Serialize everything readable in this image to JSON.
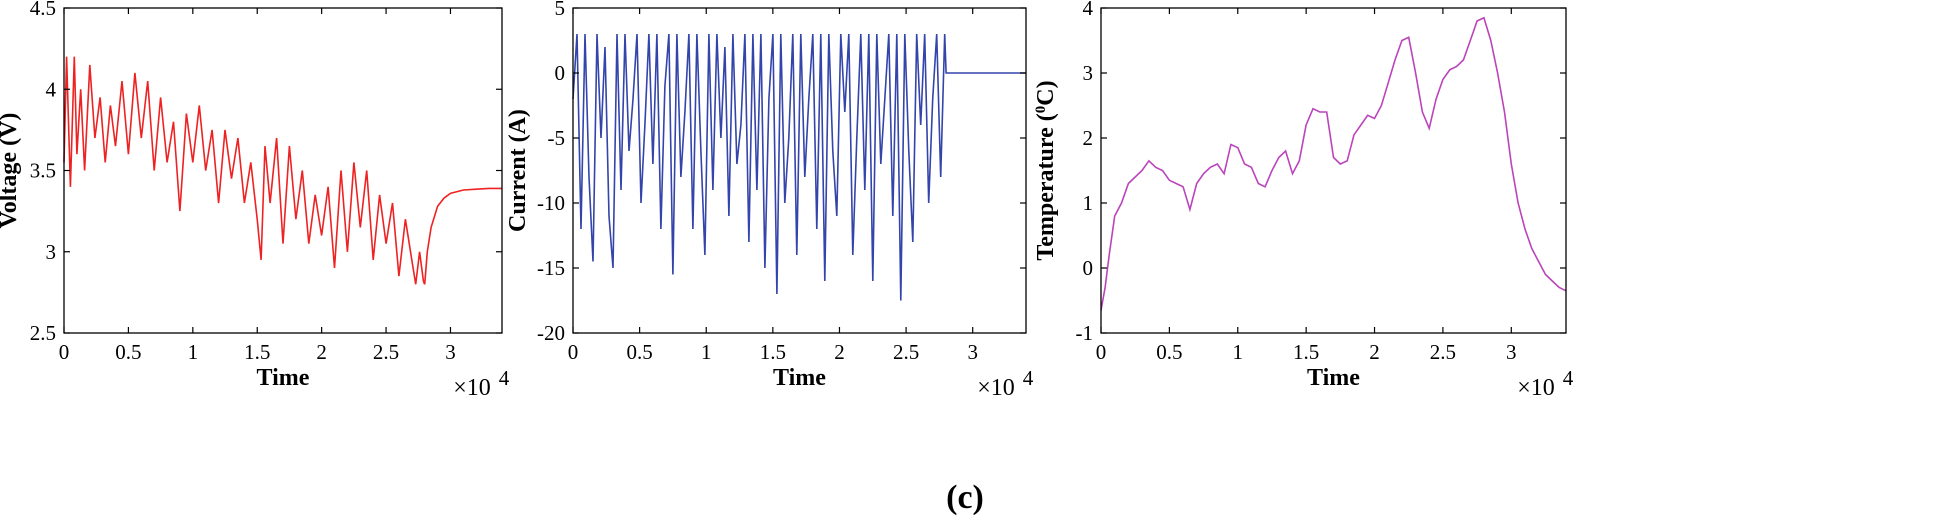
{
  "caption": "(c)",
  "chart_data": [
    {
      "type": "line",
      "xlabel": "Time",
      "ylabel": "Voltage (V)",
      "x_multiplier_label": "×10",
      "x_multiplier_exponent": "4",
      "xlim": [
        0,
        3.4
      ],
      "ylim": [
        2.5,
        4.5
      ],
      "xticks": [
        0,
        0.5,
        1,
        1.5,
        2,
        2.5,
        3
      ],
      "xtick_labels": [
        "0",
        "0.5",
        "1",
        "1.5",
        "2",
        "2.5",
        "3"
      ],
      "yticks": [
        2.5,
        3,
        3.5,
        4,
        4.5
      ],
      "ytick_labels": [
        "2.5",
        "3",
        "3.5",
        "4",
        "4.5"
      ],
      "color": "#ee2222",
      "x": [
        0,
        0.02,
        0.05,
        0.08,
        0.1,
        0.13,
        0.16,
        0.2,
        0.24,
        0.28,
        0.32,
        0.36,
        0.4,
        0.45,
        0.5,
        0.55,
        0.6,
        0.65,
        0.7,
        0.75,
        0.8,
        0.85,
        0.9,
        0.95,
        1.0,
        1.05,
        1.1,
        1.15,
        1.2,
        1.25,
        1.3,
        1.35,
        1.4,
        1.45,
        1.5,
        1.53,
        1.56,
        1.6,
        1.65,
        1.7,
        1.75,
        1.8,
        1.85,
        1.9,
        1.95,
        2.0,
        2.05,
        2.1,
        2.15,
        2.2,
        2.25,
        2.3,
        2.35,
        2.4,
        2.45,
        2.5,
        2.55,
        2.6,
        2.65,
        2.7,
        2.73,
        2.76,
        2.79,
        2.8,
        2.82,
        2.85,
        2.9,
        2.95,
        3.0,
        3.1,
        3.2,
        3.3,
        3.4
      ],
      "y": [
        3.55,
        4.2,
        3.4,
        4.2,
        3.6,
        4.0,
        3.5,
        4.15,
        3.7,
        3.95,
        3.55,
        3.9,
        3.65,
        4.05,
        3.6,
        4.1,
        3.7,
        4.05,
        3.5,
        3.95,
        3.55,
        3.8,
        3.25,
        3.85,
        3.55,
        3.9,
        3.5,
        3.75,
        3.3,
        3.75,
        3.45,
        3.7,
        3.3,
        3.55,
        3.2,
        2.95,
        3.65,
        3.3,
        3.7,
        3.05,
        3.65,
        3.2,
        3.5,
        3.05,
        3.35,
        3.1,
        3.4,
        2.9,
        3.5,
        3.0,
        3.55,
        3.15,
        3.5,
        2.95,
        3.35,
        3.05,
        3.3,
        2.85,
        3.2,
        2.95,
        2.8,
        3.0,
        2.82,
        2.8,
        3.0,
        3.15,
        3.28,
        3.33,
        3.36,
        3.38,
        3.385,
        3.39,
        3.39
      ]
    },
    {
      "type": "line",
      "xlabel": "Time",
      "ylabel": "Current (A)",
      "x_multiplier_label": "×10",
      "x_multiplier_exponent": "4",
      "xlim": [
        0,
        3.4
      ],
      "ylim": [
        -20,
        5
      ],
      "xticks": [
        0,
        0.5,
        1,
        1.5,
        2,
        2.5,
        3
      ],
      "xtick_labels": [
        "0",
        "0.5",
        "1",
        "1.5",
        "2",
        "2.5",
        "3"
      ],
      "yticks": [
        -20,
        -15,
        -10,
        -5,
        0,
        5
      ],
      "ytick_labels": [
        "-20",
        "-15",
        "-10",
        "-5",
        "0",
        "5"
      ],
      "color": "#3344aa",
      "x": [
        0,
        0.03,
        0.06,
        0.09,
        0.12,
        0.15,
        0.18,
        0.21,
        0.24,
        0.27,
        0.3,
        0.33,
        0.36,
        0.39,
        0.42,
        0.45,
        0.48,
        0.51,
        0.54,
        0.57,
        0.6,
        0.63,
        0.66,
        0.69,
        0.72,
        0.75,
        0.78,
        0.81,
        0.84,
        0.87,
        0.9,
        0.93,
        0.96,
        0.99,
        1.02,
        1.05,
        1.08,
        1.11,
        1.14,
        1.17,
        1.2,
        1.23,
        1.26,
        1.29,
        1.32,
        1.35,
        1.38,
        1.41,
        1.44,
        1.47,
        1.5,
        1.53,
        1.56,
        1.59,
        1.62,
        1.65,
        1.68,
        1.71,
        1.74,
        1.77,
        1.8,
        1.83,
        1.86,
        1.89,
        1.92,
        1.95,
        1.98,
        2.01,
        2.04,
        2.07,
        2.1,
        2.13,
        2.16,
        2.19,
        2.22,
        2.25,
        2.28,
        2.31,
        2.34,
        2.37,
        2.4,
        2.43,
        2.46,
        2.49,
        2.52,
        2.55,
        2.58,
        2.61,
        2.64,
        2.67,
        2.7,
        2.73,
        2.76,
        2.79,
        2.8,
        3.0,
        3.2,
        3.4
      ],
      "y": [
        -2,
        3,
        -12,
        3,
        -8,
        -14.5,
        3,
        -5,
        2,
        -11,
        -15,
        3,
        -9,
        3,
        -6,
        -2,
        3,
        -10,
        -4,
        3,
        -7,
        3,
        -12,
        -1,
        3,
        -15.5,
        3,
        -8,
        -3,
        3,
        -12,
        3,
        -6,
        -14,
        3,
        -9,
        3,
        -5,
        2,
        -11,
        3,
        -7,
        -4,
        3,
        -13,
        3,
        -9,
        3,
        -15,
        -2,
        3,
        -17,
        3,
        -10,
        -5,
        3,
        -14,
        3,
        -8,
        -2,
        3,
        -12,
        3,
        -16,
        3,
        -6,
        -11,
        3,
        -3,
        3,
        -14,
        -5,
        3,
        -9,
        3,
        -16,
        3,
        -7,
        -2,
        3,
        -11,
        3,
        -17.5,
        3,
        -6,
        -13,
        3,
        -4,
        3,
        -10,
        -2,
        3,
        -8,
        3,
        0,
        0,
        0,
        0
      ]
    },
    {
      "type": "line",
      "xlabel": "Time",
      "ylabel": "Temperature (",
      "ylabel_superscript": "0",
      "ylabel_tail": "C)",
      "x_multiplier_label": "×10",
      "x_multiplier_exponent": "4",
      "xlim": [
        0,
        3.4
      ],
      "ylim": [
        -1,
        4
      ],
      "xticks": [
        0,
        0.5,
        1,
        1.5,
        2,
        2.5,
        3
      ],
      "xtick_labels": [
        "0",
        "0.5",
        "1",
        "1.5",
        "2",
        "2.5",
        "3"
      ],
      "yticks": [
        -1,
        0,
        1,
        2,
        3,
        4
      ],
      "ytick_labels": [
        "-1",
        "0",
        "1",
        "2",
        "3",
        "4"
      ],
      "color": "#bb44bb",
      "x": [
        0,
        0.03,
        0.06,
        0.1,
        0.15,
        0.2,
        0.25,
        0.3,
        0.35,
        0.4,
        0.45,
        0.5,
        0.55,
        0.6,
        0.65,
        0.7,
        0.75,
        0.8,
        0.85,
        0.9,
        0.95,
        1.0,
        1.05,
        1.1,
        1.15,
        1.2,
        1.25,
        1.3,
        1.35,
        1.4,
        1.45,
        1.5,
        1.55,
        1.6,
        1.65,
        1.7,
        1.75,
        1.8,
        1.85,
        1.9,
        1.95,
        2.0,
        2.05,
        2.1,
        2.15,
        2.2,
        2.25,
        2.3,
        2.35,
        2.4,
        2.45,
        2.5,
        2.55,
        2.6,
        2.65,
        2.7,
        2.75,
        2.8,
        2.85,
        2.9,
        2.95,
        3.0,
        3.05,
        3.1,
        3.15,
        3.2,
        3.25,
        3.3,
        3.35,
        3.4
      ],
      "y": [
        -0.65,
        -0.3,
        0.2,
        0.8,
        1.0,
        1.3,
        1.4,
        1.5,
        1.65,
        1.55,
        1.5,
        1.35,
        1.3,
        1.25,
        0.9,
        1.3,
        1.45,
        1.55,
        1.6,
        1.45,
        1.9,
        1.85,
        1.6,
        1.55,
        1.3,
        1.25,
        1.5,
        1.7,
        1.8,
        1.45,
        1.65,
        2.2,
        2.45,
        2.4,
        2.4,
        1.7,
        1.6,
        1.65,
        2.05,
        2.2,
        2.35,
        2.3,
        2.5,
        2.85,
        3.2,
        3.5,
        3.55,
        3.0,
        2.4,
        2.15,
        2.6,
        2.9,
        3.05,
        3.1,
        3.2,
        3.5,
        3.8,
        3.85,
        3.5,
        3.0,
        2.4,
        1.6,
        1.0,
        0.6,
        0.3,
        0.1,
        -0.1,
        -0.2,
        -0.3,
        -0.35
      ]
    }
  ]
}
